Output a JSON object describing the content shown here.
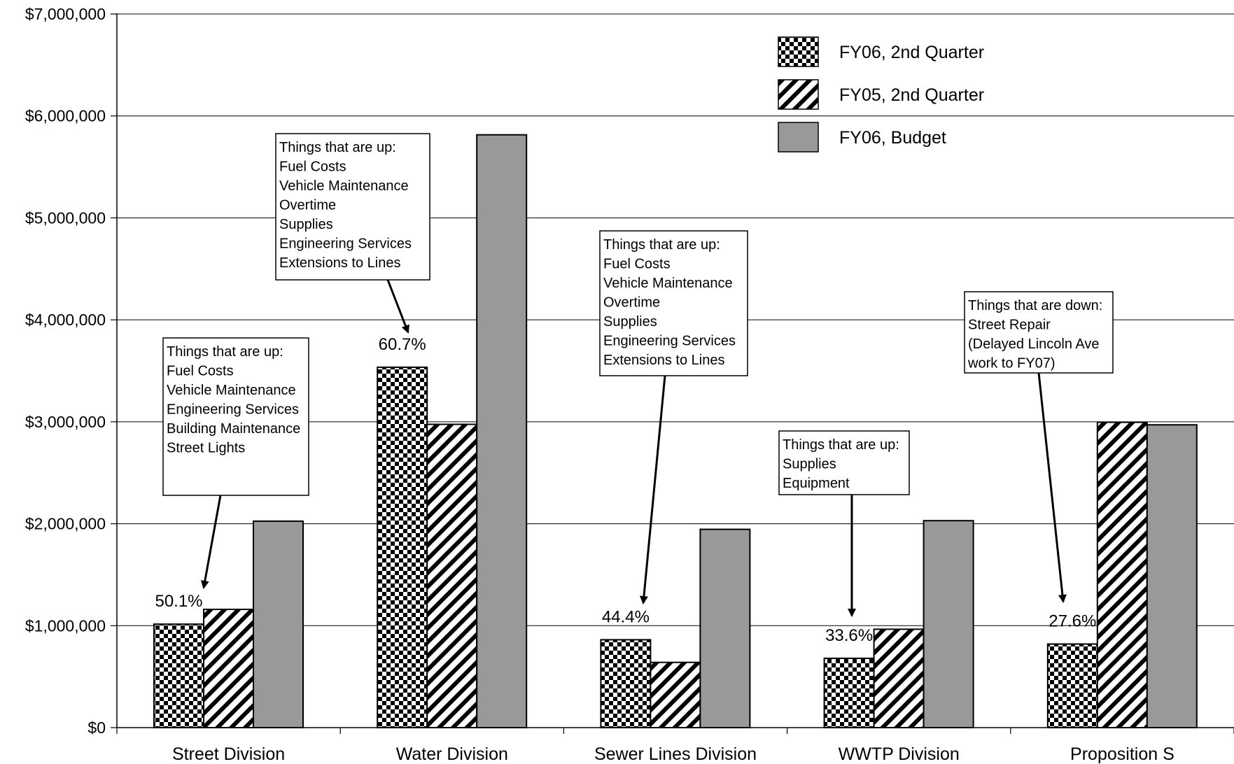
{
  "chart_data": {
    "type": "bar",
    "categories": [
      "Street Division",
      "Water Division",
      "Sewer Lines Division",
      "WWTP Division",
      "Proposition S"
    ],
    "series": [
      {
        "name": "FY06, 2nd Quarter",
        "pattern": "checker",
        "values": [
          1015000,
          3535000,
          862000,
          680000,
          820000
        ]
      },
      {
        "name": "FY05, 2nd Quarter",
        "pattern": "diagonal",
        "values": [
          1160000,
          2975000,
          640000,
          965000,
          2995000
        ]
      },
      {
        "name": "FY06, Budget",
        "pattern": "solid",
        "color": "#999999",
        "values": [
          2025000,
          5815000,
          1945000,
          2030000,
          2970000
        ]
      }
    ],
    "ylim": [
      0,
      7000000
    ],
    "yticks": [
      0,
      1000000,
      2000000,
      3000000,
      4000000,
      5000000,
      6000000,
      7000000
    ],
    "ytick_labels": [
      "$0",
      "$1,000,000",
      "$2,000,000",
      "$3,000,000",
      "$4,000,000",
      "$5,000,000",
      "$6,000,000",
      "$7,000,000"
    ],
    "gridlines": true,
    "legend_position": "top-right",
    "title": "",
    "xlabel": "",
    "ylabel": "",
    "data_labels": [
      "50.1%",
      "60.7%",
      "44.4%",
      "33.6%",
      "27.6%"
    ],
    "annotations": [
      {
        "category": 0,
        "lines": [
          "Things that are up:",
          "Fuel Costs",
          "Vehicle Maintenance",
          "Engineering Services",
          "Building Maintenance",
          "Street Lights"
        ]
      },
      {
        "category": 1,
        "lines": [
          "Things that are up:",
          "Fuel Costs",
          "Vehicle Maintenance",
          "Overtime",
          "Supplies",
          "Engineering Services",
          "Extensions to Lines"
        ]
      },
      {
        "category": 2,
        "lines": [
          "Things that are up:",
          "Fuel Costs",
          "Vehicle Maintenance",
          "Overtime",
          "Supplies",
          "Engineering Services",
          "Extensions to Lines"
        ]
      },
      {
        "category": 3,
        "lines": [
          "Things that are up:",
          "Supplies",
          "Equipment"
        ]
      },
      {
        "category": 4,
        "lines": [
          "Things that are down:",
          "Street Repair",
          "(Delayed Lincoln Ave",
          "work to FY07)"
        ]
      }
    ]
  }
}
